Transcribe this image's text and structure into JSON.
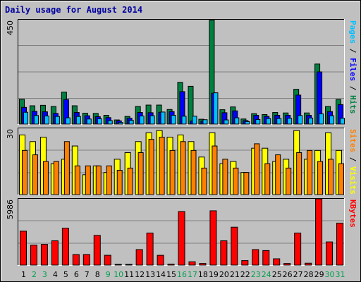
{
  "colors": {
    "background": "#c0c0c0",
    "plot": "#c0c0c0",
    "title": "#0000a0",
    "hits": "#008040",
    "files": "#0000ff",
    "pages": "#00c0ff",
    "visits": "#ffff00",
    "sites": "#ff8000",
    "kbytes": "#ff0000",
    "weekend": "#00a050",
    "weekday": "#000000"
  },
  "chart_data": [
    {
      "type": "bar",
      "title": "Daily usage for August 2014",
      "panel": "top",
      "ymax_label": "450",
      "ylim": [
        0,
        450
      ],
      "right_labels": [
        {
          "text": "Pages",
          "color": "#00c0ff"
        },
        {
          "text": " / ",
          "color": "#000000"
        },
        {
          "text": "Files",
          "color": "#0000ff"
        },
        {
          "text": " / ",
          "color": "#000000"
        },
        {
          "text": "Hits",
          "color": "#008040"
        }
      ],
      "categories": [
        "1",
        "2",
        "3",
        "4",
        "5",
        "6",
        "7",
        "8",
        "9",
        "10",
        "11",
        "12",
        "13",
        "14",
        "15",
        "16",
        "17",
        "18",
        "19",
        "20",
        "21",
        "22",
        "23",
        "24",
        "25",
        "26",
        "27",
        "28",
        "29",
        "30",
        "31"
      ],
      "series": [
        {
          "name": "Hits",
          "color": "#008040",
          "values": [
            107,
            79,
            81,
            76,
            138,
            79,
            47,
            46,
            38,
            18,
            33,
            76,
            82,
            82,
            63,
            180,
            163,
            21,
            448,
            62,
            74,
            22,
            45,
            41,
            50,
            48,
            150,
            48,
            259,
            76,
            106
          ]
        },
        {
          "name": "Files",
          "color": "#0000ff",
          "values": [
            72,
            55,
            53,
            46,
            106,
            50,
            36,
            32,
            28,
            14,
            25,
            50,
            49,
            51,
            54,
            140,
            13,
            13,
            133,
            49,
            57,
            15,
            38,
            33,
            38,
            38,
            125,
            38,
            225,
            54,
            84
          ]
        },
        {
          "name": "Pages",
          "color": "#00c0ff",
          "values": [
            51,
            37,
            35,
            33,
            27,
            33,
            22,
            23,
            15,
            7,
            16,
            35,
            36,
            52,
            38,
            34,
            34,
            19,
            135,
            18,
            27,
            11,
            20,
            24,
            24,
            25,
            37,
            26,
            44,
            36,
            25
          ]
        }
      ]
    },
    {
      "type": "bar",
      "panel": "middle",
      "ymax_label": "30",
      "ylim": [
        0,
        30
      ],
      "right_labels": [
        {
          "text": "Sites",
          "color": "#ff8000"
        },
        {
          "text": " / ",
          "color": "#000000"
        },
        {
          "text": "Visits",
          "color": "#ffff00"
        }
      ],
      "categories": [
        "1",
        "2",
        "3",
        "4",
        "5",
        "6",
        "7",
        "8",
        "9",
        "10",
        "11",
        "12",
        "13",
        "14",
        "15",
        "16",
        "17",
        "18",
        "19",
        "20",
        "21",
        "22",
        "23",
        "24",
        "25",
        "26",
        "27",
        "28",
        "29",
        "30",
        "31"
      ],
      "series": [
        {
          "name": "Visits",
          "color": "#ffff00",
          "values": [
            27,
            24,
            26,
            14,
            16,
            22,
            9,
            13,
            10,
            16,
            19,
            24,
            28,
            29,
            26,
            27,
            24,
            17,
            28,
            14,
            15,
            10,
            21,
            21,
            15,
            16,
            29,
            16,
            20,
            28,
            20
          ]
        },
        {
          "name": "Sites",
          "color": "#ff8000",
          "values": [
            20,
            18,
            15,
            15,
            24,
            13,
            13,
            13,
            13,
            11,
            12,
            19,
            25,
            26,
            20,
            24,
            20,
            12,
            22,
            16,
            12,
            10,
            23,
            14,
            18,
            12,
            19,
            20,
            15,
            16,
            14
          ]
        }
      ]
    },
    {
      "type": "bar",
      "panel": "bottom",
      "ymax_label": "5986",
      "ylim": [
        0,
        5986
      ],
      "right_labels": [
        {
          "text": "KBytes",
          "color": "#ff0000"
        }
      ],
      "categories": [
        "1",
        "2",
        "3",
        "4",
        "5",
        "6",
        "7",
        "8",
        "9",
        "10",
        "11",
        "12",
        "13",
        "14",
        "15",
        "16",
        "17",
        "18",
        "19",
        "20",
        "21",
        "22",
        "23",
        "24",
        "25",
        "26",
        "27",
        "28",
        "29",
        "30",
        "31"
      ],
      "series": [
        {
          "name": "KBytes",
          "color": "#ff0000",
          "values": [
            3063,
            1802,
            1869,
            2194,
            3330,
            951,
            956,
            2682,
            887,
            62,
            62,
            1401,
            2896,
            884,
            83,
            4839,
            297,
            150,
            4905,
            2194,
            3425,
            407,
            1401,
            1312,
            571,
            150,
            2896,
            175,
            5986,
            2094,
            3793
          ]
        }
      ]
    }
  ],
  "x_axis": {
    "weekend_days": [
      2,
      3,
      9,
      10,
      16,
      17,
      23,
      24,
      30,
      31
    ]
  }
}
